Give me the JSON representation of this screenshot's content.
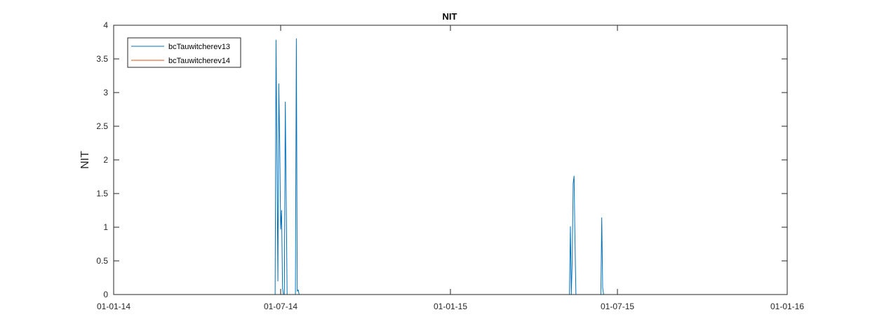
{
  "chart_data": {
    "type": "line",
    "title": "NIT",
    "xlabel": "",
    "ylabel": "NIT",
    "xlim": [
      "2014-01-01",
      "2016-01-01"
    ],
    "ylim": [
      0,
      4
    ],
    "grid": false,
    "legend_position": "top-left",
    "x_ticks": [
      {
        "date": "2014-01-01",
        "label": "01-01-14"
      },
      {
        "date": "2014-07-01",
        "label": "01-07-14"
      },
      {
        "date": "2015-01-01",
        "label": "01-01-15"
      },
      {
        "date": "2015-07-01",
        "label": "01-07-15"
      },
      {
        "date": "2016-01-01",
        "label": "01-01-16"
      }
    ],
    "y_ticks": [
      {
        "value": 0,
        "label": "0"
      },
      {
        "value": 0.5,
        "label": "0.5"
      },
      {
        "value": 1,
        "label": "1"
      },
      {
        "value": 1.5,
        "label": "1.5"
      },
      {
        "value": 2,
        "label": "2"
      },
      {
        "value": 2.5,
        "label": "2.5"
      },
      {
        "value": 3,
        "label": "3"
      },
      {
        "value": 3.5,
        "label": "3.5"
      },
      {
        "value": 4,
        "label": "4"
      }
    ],
    "series": [
      {
        "name": "bcTauwitcherev13",
        "color": "#0072BD",
        "points": [
          [
            "2014-01-01",
            0
          ],
          [
            "2014-06-25",
            0
          ],
          [
            "2014-06-26",
            3.78
          ],
          [
            "2014-06-28",
            0.2
          ],
          [
            "2014-06-29",
            3.13
          ],
          [
            "2014-06-30",
            2.2
          ],
          [
            "2014-07-01",
            0.97
          ],
          [
            "2014-07-02",
            1.25
          ],
          [
            "2014-07-03",
            0.1
          ],
          [
            "2014-07-04",
            0
          ],
          [
            "2014-07-05",
            0
          ],
          [
            "2014-07-06",
            2.86
          ],
          [
            "2014-07-08",
            0
          ],
          [
            "2014-07-17",
            0
          ],
          [
            "2014-07-18",
            3.8
          ],
          [
            "2014-07-19",
            0.05
          ],
          [
            "2014-07-20",
            0.07
          ],
          [
            "2014-07-21",
            0
          ],
          [
            "2015-05-10",
            0
          ],
          [
            "2015-05-11",
            1.01
          ],
          [
            "2015-05-12",
            0
          ],
          [
            "2015-05-13",
            0.5
          ],
          [
            "2015-05-14",
            1.65
          ],
          [
            "2015-05-15",
            1.76
          ],
          [
            "2015-05-16",
            0.8
          ],
          [
            "2015-05-17",
            0
          ],
          [
            "2015-06-13",
            0
          ],
          [
            "2015-06-14",
            1.14
          ],
          [
            "2015-06-15",
            0.1
          ],
          [
            "2015-06-16",
            0
          ],
          [
            "2016-01-01",
            0
          ]
        ]
      },
      {
        "name": "bcTauwitcherev14",
        "color": "#D95319",
        "points": [
          [
            "2014-01-01",
            0
          ],
          [
            "2016-01-01",
            0
          ]
        ]
      }
    ]
  }
}
